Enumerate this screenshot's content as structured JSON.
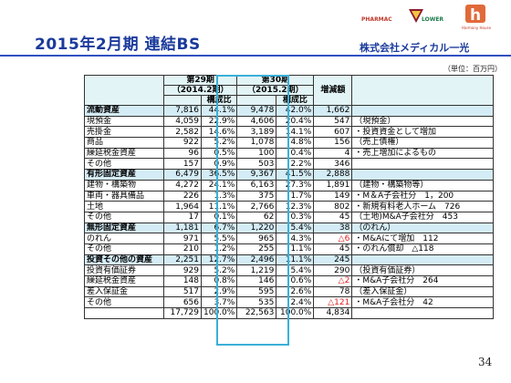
{
  "title": "2015年2月期 連結BS",
  "logos": {
    "pharmac": "PHARMAC",
    "lower": "LOWER",
    "harmony": "Harmony House"
  },
  "company": "株式会社メディカル一光",
  "unit": "（単位：百万円）",
  "page_number": "34",
  "header": {
    "period29": "第29期",
    "period29_date": "（2014.2期）",
    "period30": "第30期",
    "period30_date": "（2015.2期）",
    "ratio": "構成比",
    "change": "増減額"
  },
  "rows": [
    {
      "label": "流動資産",
      "v29": "7,816",
      "p29": "44.1%",
      "v30": "9,478",
      "p30": "42.0%",
      "diff": "1,662",
      "note": "",
      "section": true
    },
    {
      "label": "現預金",
      "v29": "4,059",
      "p29": "22.9%",
      "v30": "4,606",
      "p30": "20.4%",
      "diff": "547",
      "note": "（現預金）"
    },
    {
      "label": "売掛金",
      "v29": "2,582",
      "p29": "14.6%",
      "v30": "3,189",
      "p30": "14.1%",
      "diff": "607",
      "note": "・投資資金として増加"
    },
    {
      "label": "商品",
      "v29": "922",
      "p29": "5.2%",
      "v30": "1,078",
      "p30": "4.8%",
      "diff": "156",
      "note": "（売上債権）"
    },
    {
      "label": "繰延税金資産",
      "v29": "96",
      "p29": "0.5%",
      "v30": "100",
      "p30": "0.4%",
      "diff": "4",
      "note": "・売上増加によるもの"
    },
    {
      "label": "その他",
      "v29": "157",
      "p29": "0.9%",
      "v30": "503",
      "p30": "2.2%",
      "diff": "346",
      "note": ""
    },
    {
      "label": "有形固定資産",
      "v29": "6,479",
      "p29": "36.5%",
      "v30": "9,367",
      "p30": "41.5%",
      "diff": "2,888",
      "note": "",
      "section": true
    },
    {
      "label": "建物・構築物",
      "v29": "4,272",
      "p29": "24.1%",
      "v30": "6,163",
      "p30": "27.3%",
      "diff": "1,891",
      "note": "（建物・構築物等）"
    },
    {
      "label": "車両・器具備品",
      "v29": "226",
      "p29": "1.3%",
      "v30": "375",
      "p30": "1.7%",
      "diff": "149",
      "note": "・M＆A子会社分　1，200"
    },
    {
      "label": "土地",
      "v29": "1,964",
      "p29": "11.1%",
      "v30": "2,766",
      "p30": "12.3%",
      "diff": "802",
      "note": "・新規有料老人ホーム　726"
    },
    {
      "label": "その他",
      "v29": "17",
      "p29": "0.1%",
      "v30": "62",
      "p30": "0.3%",
      "diff": "45",
      "note": "（土地)M&A子会社分　453"
    },
    {
      "label": "無形固定資産",
      "v29": "1,181",
      "p29": "6.7%",
      "v30": "1,220",
      "p30": "5.4%",
      "diff": "38",
      "note": "（のれん）",
      "section": true
    },
    {
      "label": "のれん",
      "v29": "971",
      "p29": "5.5%",
      "v30": "965",
      "p30": "4.3%",
      "diff": "△6",
      "neg": true,
      "note": "・M&Aにて増加　112"
    },
    {
      "label": "その他",
      "v29": "210",
      "p29": "1.2%",
      "v30": "255",
      "p30": "1.1%",
      "diff": "45",
      "note": "・のれん償却　△118"
    },
    {
      "label": "投資その他の資産",
      "v29": "2,251",
      "p29": "12.7%",
      "v30": "2,496",
      "p30": "11.1%",
      "diff": "245",
      "note": "",
      "section": true
    },
    {
      "label": "投資有価証券",
      "v29": "929",
      "p29": "5.2%",
      "v30": "1,219",
      "p30": "5.4%",
      "diff": "290",
      "note": "（投資有価証券）"
    },
    {
      "label": "繰延税金資産",
      "v29": "148",
      "p29": "0.8%",
      "v30": "146",
      "p30": "0.6%",
      "diff": "△2",
      "neg": true,
      "note": "・M&A子会社分　264"
    },
    {
      "label": "差入保証金",
      "v29": "517",
      "p29": "2.9%",
      "v30": "595",
      "p30": "2.6%",
      "diff": "78",
      "note": "（差入保証金）"
    },
    {
      "label": "その他",
      "v29": "656",
      "p29": "3.7%",
      "v30": "535",
      "p30": "2.4%",
      "diff": "△121",
      "neg": true,
      "note": "・M&A子会社分　42"
    },
    {
      "label": "",
      "v29": "17,729",
      "p29": "100.0%",
      "v30": "22,563",
      "p30": "100.0%",
      "diff": "4,834",
      "note": ""
    }
  ],
  "colors": {
    "title": "#1a3a9c",
    "header_bg": "#e2f4f6",
    "section_bg": "#d4ecf6",
    "highlight": "#3ab0d8",
    "negative": "#e02020"
  }
}
